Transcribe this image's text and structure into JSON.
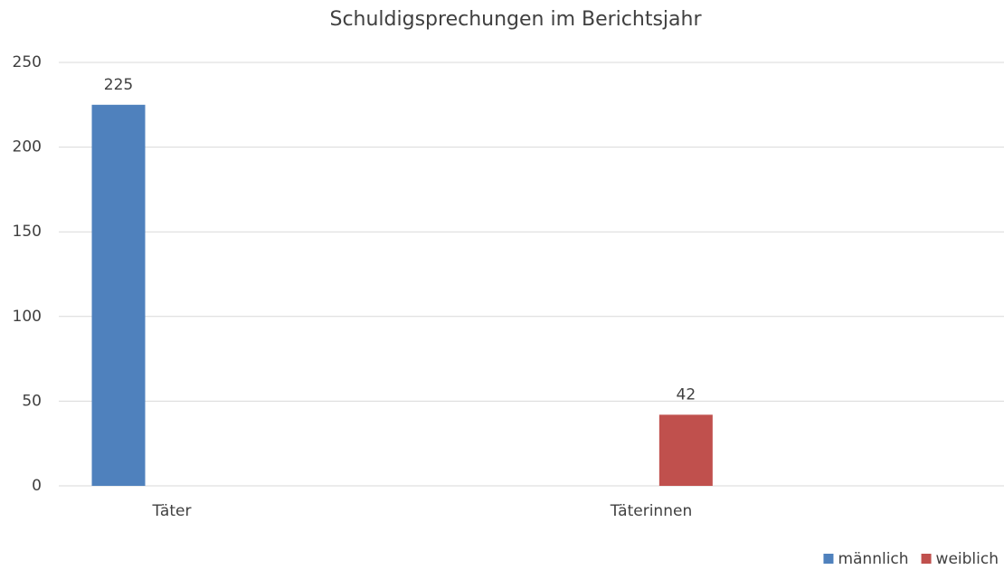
{
  "chart_data": {
    "type": "bar",
    "title": "Schuldigsprechungen im Berichtsjahr",
    "categories": [
      "Täter",
      "Täterinnen"
    ],
    "series": [
      {
        "name": "männlich",
        "color": "#4f81bd",
        "values": [
          225,
          null
        ]
      },
      {
        "name": "weiblich",
        "color": "#c0504d",
        "values": [
          null,
          42
        ]
      }
    ],
    "ylim": [
      0,
      250
    ],
    "yticks": [
      0,
      50,
      100,
      150,
      200,
      250
    ],
    "grid": true,
    "legend": "bottom-right"
  }
}
